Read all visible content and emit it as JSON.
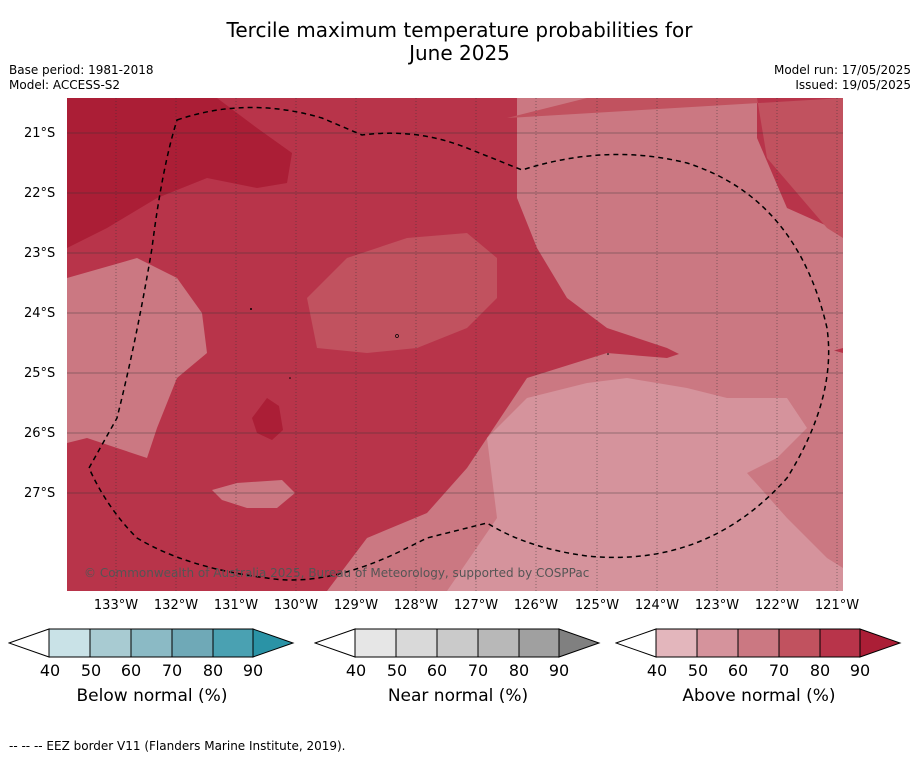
{
  "title_line1": "Tercile maximum temperature probabilities for",
  "title_line2": "June 2025",
  "base_period": "Base period: 1981-2018",
  "model": "Model: ACCESS-S2",
  "model_run": "Model run: 17/05/2025",
  "issued": "Issued: 19/05/2025",
  "lat_labels": [
    "21°S",
    "22°S",
    "23°S",
    "24°S",
    "25°S",
    "26°S",
    "27°S"
  ],
  "lon_labels": [
    "133°W",
    "132°W",
    "131°W",
    "130°W",
    "129°W",
    "128°W",
    "127°W",
    "126°W",
    "125°W",
    "124°W",
    "123°W",
    "122°W",
    "121°W"
  ],
  "copyright": "© Commonwealth of Australia 2025, Bureau of Meteorology, supported by COSPPac",
  "colorbars": [
    {
      "label": "Below normal (%)",
      "ticks": [
        "40",
        "50",
        "60",
        "70",
        "80",
        "90"
      ],
      "colors": [
        "#ffffff",
        "#c9e2e7",
        "#a8cbd2",
        "#8bbac5",
        "#6fa9b7",
        "#4aa1b2",
        "#2a93a6"
      ]
    },
    {
      "label": "Near normal (%)",
      "ticks": [
        "40",
        "50",
        "60",
        "70",
        "80",
        "90"
      ],
      "colors": [
        "#ffffff",
        "#e6e6e6",
        "#d9d9d9",
        "#cacaca",
        "#b8b8b8",
        "#a0a0a0",
        "#808080"
      ]
    },
    {
      "label": "Above normal (%)",
      "ticks": [
        "40",
        "50",
        "60",
        "70",
        "80",
        "90"
      ],
      "colors": [
        "#ffffff",
        "#e3b6bc",
        "#d5939c",
        "#cb7882",
        "#c1525f",
        "#b8344a",
        "#ab1e36"
      ]
    }
  ],
  "footnote": "--  --  -- EEZ border V11 (Flanders Marine Institute, 2019).",
  "map_colors": {
    "c50": "#d5939c",
    "c60": "#cb7882",
    "c70": "#c1525f",
    "c80": "#b8344a",
    "c90": "#ab1e36"
  }
}
